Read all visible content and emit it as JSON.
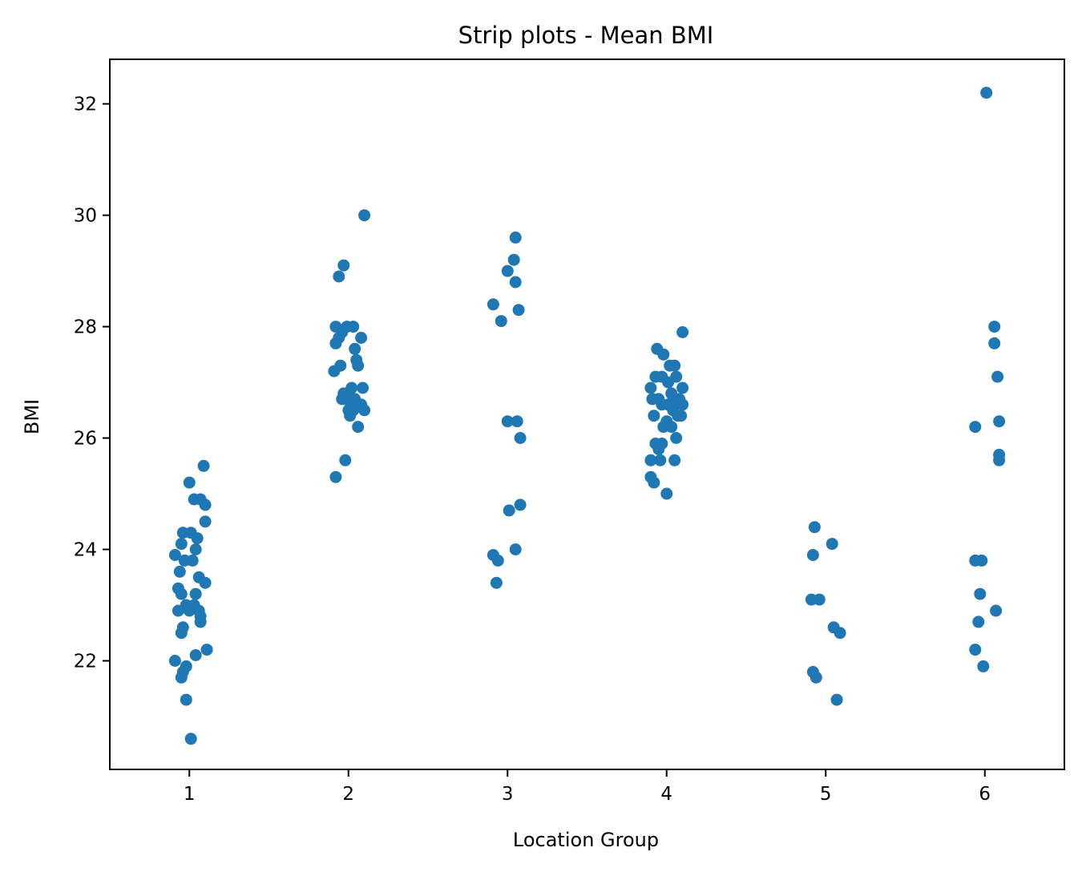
{
  "chart_data": {
    "type": "scatter",
    "title": "Strip plots - Mean BMI",
    "xlabel": "Location Group",
    "ylabel": "BMI",
    "xlim": [
      0.5,
      6.5
    ],
    "ylim": [
      20.05,
      32.8
    ],
    "xticks": [
      "1",
      "2",
      "3",
      "4",
      "5",
      "6"
    ],
    "yticks": [
      "22",
      "24",
      "26",
      "28",
      "30",
      "32"
    ],
    "grid": false,
    "color": "#1f77b4",
    "points": [
      {
        "x": 1.0,
        "y": 25.2
      },
      {
        "x": 1.09,
        "y": 25.5
      },
      {
        "x": 1.03,
        "y": 24.9
      },
      {
        "x": 1.07,
        "y": 24.9
      },
      {
        "x": 1.1,
        "y": 24.8
      },
      {
        "x": 1.1,
        "y": 24.5
      },
      {
        "x": 0.96,
        "y": 24.3
      },
      {
        "x": 1.01,
        "y": 24.3
      },
      {
        "x": 1.05,
        "y": 24.2
      },
      {
        "x": 0.95,
        "y": 24.1
      },
      {
        "x": 1.04,
        "y": 24.0
      },
      {
        "x": 0.91,
        "y": 23.9
      },
      {
        "x": 0.97,
        "y": 23.8
      },
      {
        "x": 1.02,
        "y": 23.8
      },
      {
        "x": 0.94,
        "y": 23.6
      },
      {
        "x": 1.06,
        "y": 23.5
      },
      {
        "x": 1.1,
        "y": 23.4
      },
      {
        "x": 0.93,
        "y": 23.3
      },
      {
        "x": 0.95,
        "y": 23.2
      },
      {
        "x": 1.04,
        "y": 23.2
      },
      {
        "x": 0.98,
        "y": 23.0
      },
      {
        "x": 1.03,
        "y": 23.0
      },
      {
        "x": 0.93,
        "y": 22.9
      },
      {
        "x": 1.0,
        "y": 22.9
      },
      {
        "x": 1.06,
        "y": 22.9
      },
      {
        "x": 1.07,
        "y": 22.8
      },
      {
        "x": 1.07,
        "y": 22.7
      },
      {
        "x": 0.96,
        "y": 22.6
      },
      {
        "x": 0.95,
        "y": 22.5
      },
      {
        "x": 1.11,
        "y": 22.2
      },
      {
        "x": 1.04,
        "y": 22.1
      },
      {
        "x": 0.91,
        "y": 22.0
      },
      {
        "x": 0.98,
        "y": 21.9
      },
      {
        "x": 0.96,
        "y": 21.8
      },
      {
        "x": 0.95,
        "y": 21.7
      },
      {
        "x": 0.98,
        "y": 21.3
      },
      {
        "x": 1.01,
        "y": 20.6
      },
      {
        "x": 2.1,
        "y": 30.0
      },
      {
        "x": 1.97,
        "y": 29.1
      },
      {
        "x": 1.94,
        "y": 28.9
      },
      {
        "x": 1.92,
        "y": 28.0
      },
      {
        "x": 1.99,
        "y": 28.0
      },
      {
        "x": 2.03,
        "y": 28.0
      },
      {
        "x": 1.96,
        "y": 27.9
      },
      {
        "x": 2.08,
        "y": 27.8
      },
      {
        "x": 1.94,
        "y": 27.8
      },
      {
        "x": 1.92,
        "y": 27.7
      },
      {
        "x": 2.04,
        "y": 27.6
      },
      {
        "x": 2.05,
        "y": 27.4
      },
      {
        "x": 2.06,
        "y": 27.3
      },
      {
        "x": 1.95,
        "y": 27.3
      },
      {
        "x": 1.91,
        "y": 27.2
      },
      {
        "x": 2.09,
        "y": 26.9
      },
      {
        "x": 2.02,
        "y": 26.9
      },
      {
        "x": 1.97,
        "y": 26.8
      },
      {
        "x": 1.96,
        "y": 26.7
      },
      {
        "x": 2.0,
        "y": 26.7
      },
      {
        "x": 2.04,
        "y": 26.7
      },
      {
        "x": 1.98,
        "y": 26.7
      },
      {
        "x": 2.08,
        "y": 26.6
      },
      {
        "x": 2.0,
        "y": 26.5
      },
      {
        "x": 2.1,
        "y": 26.5
      },
      {
        "x": 2.03,
        "y": 26.5
      },
      {
        "x": 2.01,
        "y": 26.4
      },
      {
        "x": 2.06,
        "y": 26.2
      },
      {
        "x": 1.98,
        "y": 25.6
      },
      {
        "x": 1.92,
        "y": 25.3
      },
      {
        "x": 3.05,
        "y": 29.6
      },
      {
        "x": 3.04,
        "y": 29.2
      },
      {
        "x": 3.0,
        "y": 29.0
      },
      {
        "x": 3.05,
        "y": 28.8
      },
      {
        "x": 2.91,
        "y": 28.4
      },
      {
        "x": 3.07,
        "y": 28.3
      },
      {
        "x": 2.96,
        "y": 28.1
      },
      {
        "x": 3.0,
        "y": 26.3
      },
      {
        "x": 3.06,
        "y": 26.3
      },
      {
        "x": 3.08,
        "y": 26.0
      },
      {
        "x": 3.08,
        "y": 24.8
      },
      {
        "x": 3.01,
        "y": 24.7
      },
      {
        "x": 3.05,
        "y": 24.0
      },
      {
        "x": 2.91,
        "y": 23.9
      },
      {
        "x": 2.94,
        "y": 23.8
      },
      {
        "x": 2.93,
        "y": 23.4
      },
      {
        "x": 4.1,
        "y": 27.9
      },
      {
        "x": 3.94,
        "y": 27.6
      },
      {
        "x": 3.98,
        "y": 27.5
      },
      {
        "x": 4.02,
        "y": 27.3
      },
      {
        "x": 4.05,
        "y": 27.3
      },
      {
        "x": 3.93,
        "y": 27.1
      },
      {
        "x": 3.97,
        "y": 27.1
      },
      {
        "x": 4.06,
        "y": 27.1
      },
      {
        "x": 4.01,
        "y": 27.0
      },
      {
        "x": 3.9,
        "y": 26.9
      },
      {
        "x": 4.1,
        "y": 26.9
      },
      {
        "x": 4.03,
        "y": 26.8
      },
      {
        "x": 3.91,
        "y": 26.7
      },
      {
        "x": 3.95,
        "y": 26.7
      },
      {
        "x": 4.08,
        "y": 26.7
      },
      {
        "x": 4.01,
        "y": 26.6
      },
      {
        "x": 4.05,
        "y": 26.6
      },
      {
        "x": 3.97,
        "y": 26.6
      },
      {
        "x": 4.1,
        "y": 26.6
      },
      {
        "x": 3.92,
        "y": 26.4
      },
      {
        "x": 4.07,
        "y": 26.4
      },
      {
        "x": 4.04,
        "y": 26.5
      },
      {
        "x": 4.09,
        "y": 26.4
      },
      {
        "x": 4.0,
        "y": 26.3
      },
      {
        "x": 3.98,
        "y": 26.2
      },
      {
        "x": 4.03,
        "y": 26.2
      },
      {
        "x": 4.06,
        "y": 26.0
      },
      {
        "x": 3.93,
        "y": 25.9
      },
      {
        "x": 3.97,
        "y": 25.9
      },
      {
        "x": 3.95,
        "y": 25.8
      },
      {
        "x": 3.9,
        "y": 25.6
      },
      {
        "x": 3.96,
        "y": 25.6
      },
      {
        "x": 4.05,
        "y": 25.6
      },
      {
        "x": 3.9,
        "y": 25.3
      },
      {
        "x": 3.92,
        "y": 25.2
      },
      {
        "x": 4.0,
        "y": 25.0
      },
      {
        "x": 4.93,
        "y": 24.4
      },
      {
        "x": 5.04,
        "y": 24.1
      },
      {
        "x": 4.92,
        "y": 23.9
      },
      {
        "x": 4.91,
        "y": 23.1
      },
      {
        "x": 4.96,
        "y": 23.1
      },
      {
        "x": 5.05,
        "y": 22.6
      },
      {
        "x": 5.09,
        "y": 22.5
      },
      {
        "x": 4.92,
        "y": 21.8
      },
      {
        "x": 4.94,
        "y": 21.7
      },
      {
        "x": 5.07,
        "y": 21.3
      },
      {
        "x": 6.01,
        "y": 32.2
      },
      {
        "x": 6.06,
        "y": 28.0
      },
      {
        "x": 6.06,
        "y": 27.7
      },
      {
        "x": 6.08,
        "y": 27.1
      },
      {
        "x": 6.09,
        "y": 26.3
      },
      {
        "x": 5.94,
        "y": 26.2
      },
      {
        "x": 6.09,
        "y": 25.7
      },
      {
        "x": 6.09,
        "y": 25.6
      },
      {
        "x": 5.94,
        "y": 23.8
      },
      {
        "x": 5.98,
        "y": 23.8
      },
      {
        "x": 5.97,
        "y": 23.2
      },
      {
        "x": 6.07,
        "y": 22.9
      },
      {
        "x": 5.96,
        "y": 22.7
      },
      {
        "x": 5.94,
        "y": 22.2
      },
      {
        "x": 5.99,
        "y": 21.9
      }
    ]
  }
}
